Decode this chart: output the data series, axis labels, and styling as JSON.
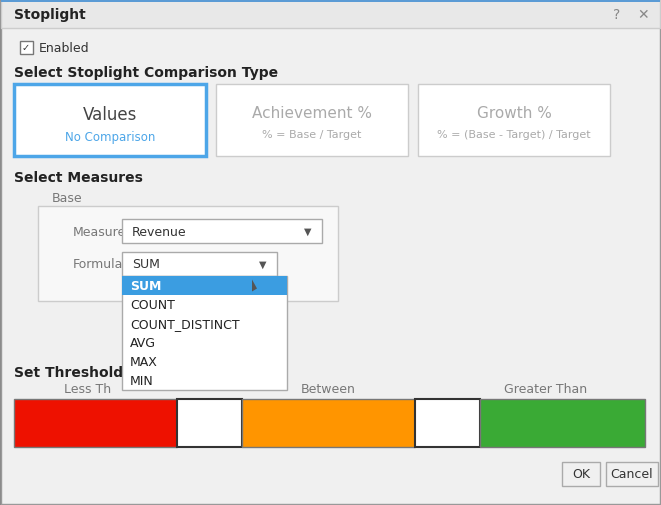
{
  "title": "Stoplight",
  "bg_outer": "#c8c8c8",
  "dialog_bg": "#f4f4f4",
  "header_bg": "#e8e8e8",
  "enabled_label": "Enabled",
  "section1_title": "Select Stoplight Comparison Type",
  "section2_title": "Select Measures",
  "section3_title": "Set Threshold",
  "box1_title": "Values",
  "box1_sub": "No Comparison",
  "box1_sub_color": "#4da6e8",
  "box2_title": "Achievement %",
  "box2_sub": "% = Base / Target",
  "box3_title": "Growth %",
  "box3_sub": "% = (Base - Target) / Target",
  "selected_box_border": "#4da6e8",
  "unselected_box_border": "#cccccc",
  "base_label": "Base",
  "measure_label": "Measure",
  "measure_value": "Revenue",
  "formula_label": "Formula",
  "formula_value": "SUM",
  "dropdown_items": [
    "SUM",
    "COUNT",
    "COUNT_DISTINCT",
    "AVG",
    "MAX",
    "MIN"
  ],
  "selected_item": "SUM",
  "selected_item_bg": "#3b9de1",
  "selected_item_fg": "#ffffff",
  "less_than_label": "Less Th",
  "between_label": "Between",
  "greater_than_label": "Greater Than",
  "color_red": "#ee1100",
  "color_orange": "#ff9500",
  "color_green": "#3aaa35",
  "color_white": "#ffffff",
  "ok_label": "OK",
  "cancel_label": "Cancel",
  "text_gray": "#aaaaaa",
  "text_mid": "#777777",
  "text_dark": "#333333"
}
